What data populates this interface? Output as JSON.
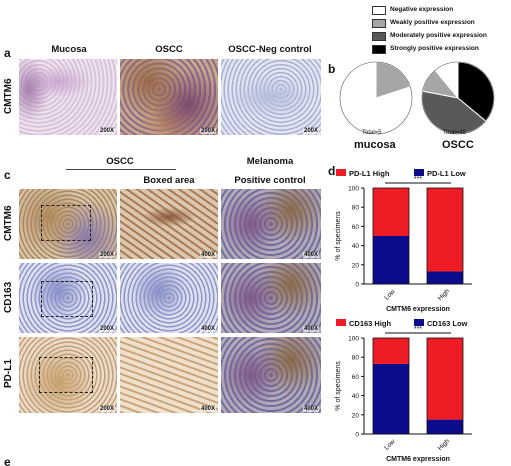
{
  "panel_a": {
    "letter": "a",
    "columns": [
      "Mucosa",
      "OSCC",
      "OSCC-Neg control"
    ],
    "row_label": "CMTM6",
    "magnifications": [
      "200X",
      "200X",
      "200X"
    ]
  },
  "panel_b": {
    "letter": "b",
    "legend": [
      {
        "label": "Negative expression",
        "color": "#ffffff"
      },
      {
        "label": "Weakly positive expression",
        "color": "#a6a6a6"
      },
      {
        "label": "Moderately positive expression",
        "color": "#595959"
      },
      {
        "label": "Strongly positive expression",
        "color": "#000000"
      }
    ],
    "pies": [
      {
        "total": "Total=5",
        "name": "mucosa"
      },
      {
        "total": "Total=45",
        "name": "OSCC"
      }
    ]
  },
  "panel_c": {
    "letter": "c",
    "header_oscc": "OSCC",
    "header_melanoma": "Melanoma",
    "subheader_boxed": "Boxed area",
    "subheader_positive": "Positive control",
    "rows": [
      {
        "label": "CMTM6",
        "mags": [
          "200X",
          "400X",
          "400X"
        ]
      },
      {
        "label": "CD163",
        "mags": [
          "200X",
          "400X",
          "400X"
        ]
      },
      {
        "label": "PD-L1",
        "mags": [
          "200X",
          "400X",
          "400X"
        ]
      }
    ]
  },
  "panel_d": {
    "letter": "d",
    "significance": "***",
    "next_panel_letter": "e"
  },
  "chart_data": [
    {
      "type": "pie",
      "title": "mucosa",
      "note": "Total=5",
      "categories": [
        "Negative expression",
        "Weakly positive expression",
        "Moderately positive expression",
        "Strongly positive expression"
      ],
      "values": [
        80,
        20,
        0,
        0
      ]
    },
    {
      "type": "pie",
      "title": "OSCC",
      "note": "Total=45",
      "categories": [
        "Negative expression",
        "Weakly positive expression",
        "Moderately positive expression",
        "Strongly positive expression"
      ],
      "values": [
        11,
        11,
        42,
        36
      ]
    },
    {
      "type": "bar",
      "stacked": true,
      "categories": [
        "Low",
        "High"
      ],
      "xlabel": "CMTM6 expression",
      "ylabel": "% of specimens",
      "ylim": [
        0,
        100
      ],
      "yticks": [
        0,
        20,
        40,
        60,
        80,
        100
      ],
      "series": [
        {
          "name": "PD-L1 Low",
          "color": "#0b0b8c",
          "values": [
            50,
            13
          ]
        },
        {
          "name": "PD-L1 High",
          "color": "#ee1c24",
          "values": [
            50,
            87
          ]
        }
      ],
      "legend_position": "top",
      "annotation": "***"
    },
    {
      "type": "bar",
      "stacked": true,
      "categories": [
        "Low",
        "High"
      ],
      "xlabel": "CMTM6 expression",
      "ylabel": "% of specimens",
      "ylim": [
        0,
        100
      ],
      "yticks": [
        0,
        20,
        40,
        60,
        80,
        100
      ],
      "series": [
        {
          "name": "CD163 Low",
          "color": "#0b0b8c",
          "values": [
            73,
            15
          ]
        },
        {
          "name": "CD163 High",
          "color": "#ee1c24",
          "values": [
            27,
            85
          ]
        }
      ],
      "legend_position": "top",
      "annotation": "***"
    }
  ]
}
